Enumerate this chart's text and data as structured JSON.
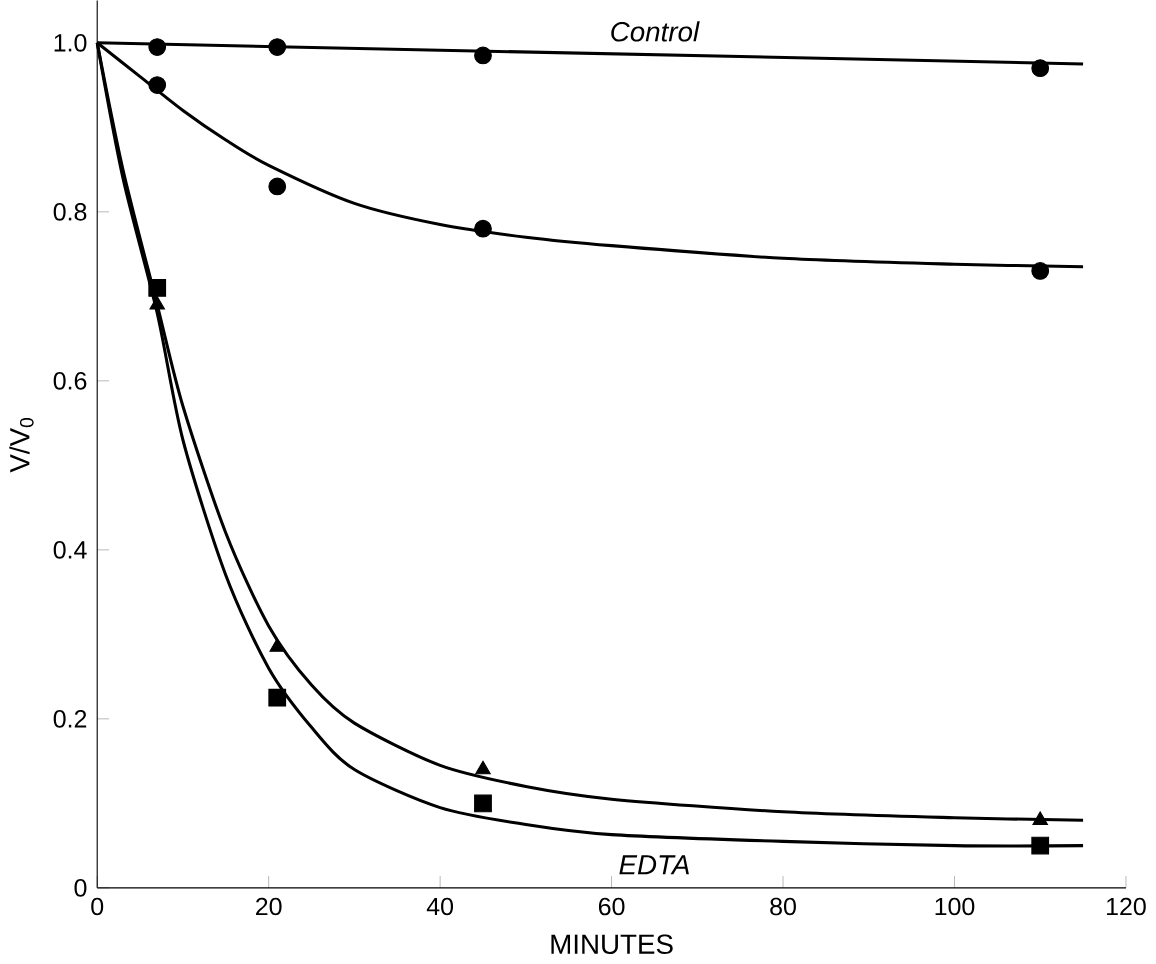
{
  "chart_data": {
    "type": "scatter",
    "xlabel": "MINUTES",
    "ylabel": "V/V$_{0}$",
    "xlim": [
      0,
      120
    ],
    "ylim": [
      0,
      1.05
    ],
    "xticks": [
      0,
      20,
      40,
      60,
      80,
      100,
      120
    ],
    "yticks": [
      0,
      0.2,
      0.4,
      0.6,
      0.8,
      {
        "value": 1,
        "label": "1.0"
      }
    ],
    "series": [
      {
        "marker": "circle",
        "color": "#000000",
        "x": [
          7,
          21,
          45,
          110
        ],
        "values": [
          0.995,
          0.995,
          0.985,
          0.97
        ]
      },
      {
        "marker": "circle",
        "color": "#000000",
        "x": [
          7,
          21,
          45,
          110
        ],
        "values": [
          0.95,
          0.83,
          0.78,
          0.73
        ]
      },
      {
        "marker": "triangle",
        "color": "#000000",
        "x": [
          7,
          21,
          45,
          110
        ],
        "values": [
          0.69,
          0.285,
          0.14,
          0.08
        ]
      },
      {
        "marker": "square",
        "color": "#000000",
        "x": [
          7,
          21,
          45,
          110
        ],
        "values": [
          0.71,
          0.225,
          0.1,
          0.05
        ]
      },
      {
        "type": "line",
        "marker": "none",
        "color": "#000000",
        "x": [
          0,
          115
        ],
        "values": [
          1,
          0.975
        ]
      },
      {
        "type": "line",
        "marker": "none",
        "color": "#000000",
        "x": [
          0,
          5,
          10,
          15,
          20,
          30,
          40,
          50,
          60,
          80,
          100,
          115
        ],
        "values": [
          1,
          0.96,
          0.92,
          0.885,
          0.855,
          0.81,
          0.785,
          0.77,
          0.76,
          0.745,
          0.738,
          0.735
        ]
      },
      {
        "type": "line",
        "marker": "none",
        "color": "#000000",
        "x": [
          0,
          3,
          7,
          10,
          15,
          20,
          25,
          30,
          40,
          50,
          60,
          80,
          100,
          115
        ],
        "values": [
          1,
          0.85,
          0.69,
          0.57,
          0.42,
          0.31,
          0.24,
          0.195,
          0.145,
          0.12,
          0.105,
          0.09,
          0.083,
          0.08
        ]
      },
      {
        "type": "line",
        "marker": "none",
        "color": "#000000",
        "x": [
          0,
          3,
          7,
          10,
          15,
          20,
          25,
          30,
          40,
          50,
          60,
          80,
          100,
          115
        ],
        "values": [
          1,
          0.84,
          0.68,
          0.53,
          0.37,
          0.26,
          0.19,
          0.14,
          0.095,
          0.075,
          0.063,
          0.055,
          0.05,
          0.05
        ]
      }
    ],
    "annotations": [
      {
        "text": "Control",
        "x": 65,
        "y": 0.98
      },
      {
        "text": "EDTA",
        "x": 65,
        "y": 0.06
      }
    ]
  }
}
